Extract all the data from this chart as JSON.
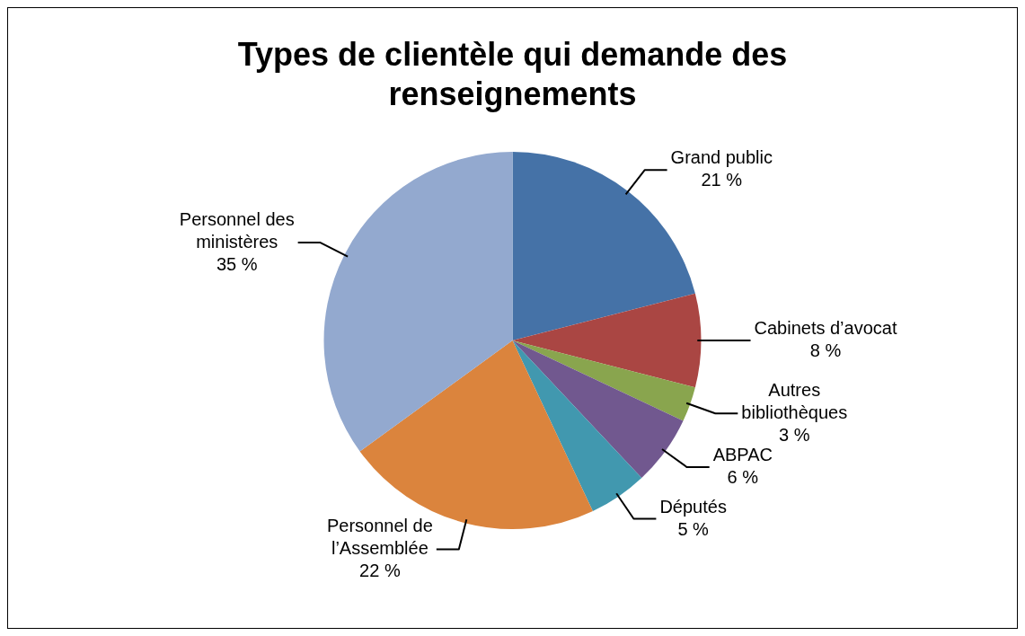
{
  "chart_data": {
    "type": "pie",
    "title": "Types de clientèle qui demande des renseignements",
    "categories": [
      "Grand public",
      "Cabinets d’avocat",
      "Autres bibliothèques",
      "ABPAC",
      "Députés",
      "Personnel de l’Assemblée",
      "Personnel des ministères"
    ],
    "values": [
      21,
      8,
      3,
      6,
      5,
      22,
      35
    ],
    "colors": [
      "#4572a7",
      "#aa4643",
      "#89a54e",
      "#71588f",
      "#4198af",
      "#db843d",
      "#93a9cf"
    ],
    "value_labels": [
      "21 %",
      "8 %",
      "3 %",
      "6 %",
      "5 %",
      "22 %",
      "35 %"
    ],
    "legend": false
  }
}
